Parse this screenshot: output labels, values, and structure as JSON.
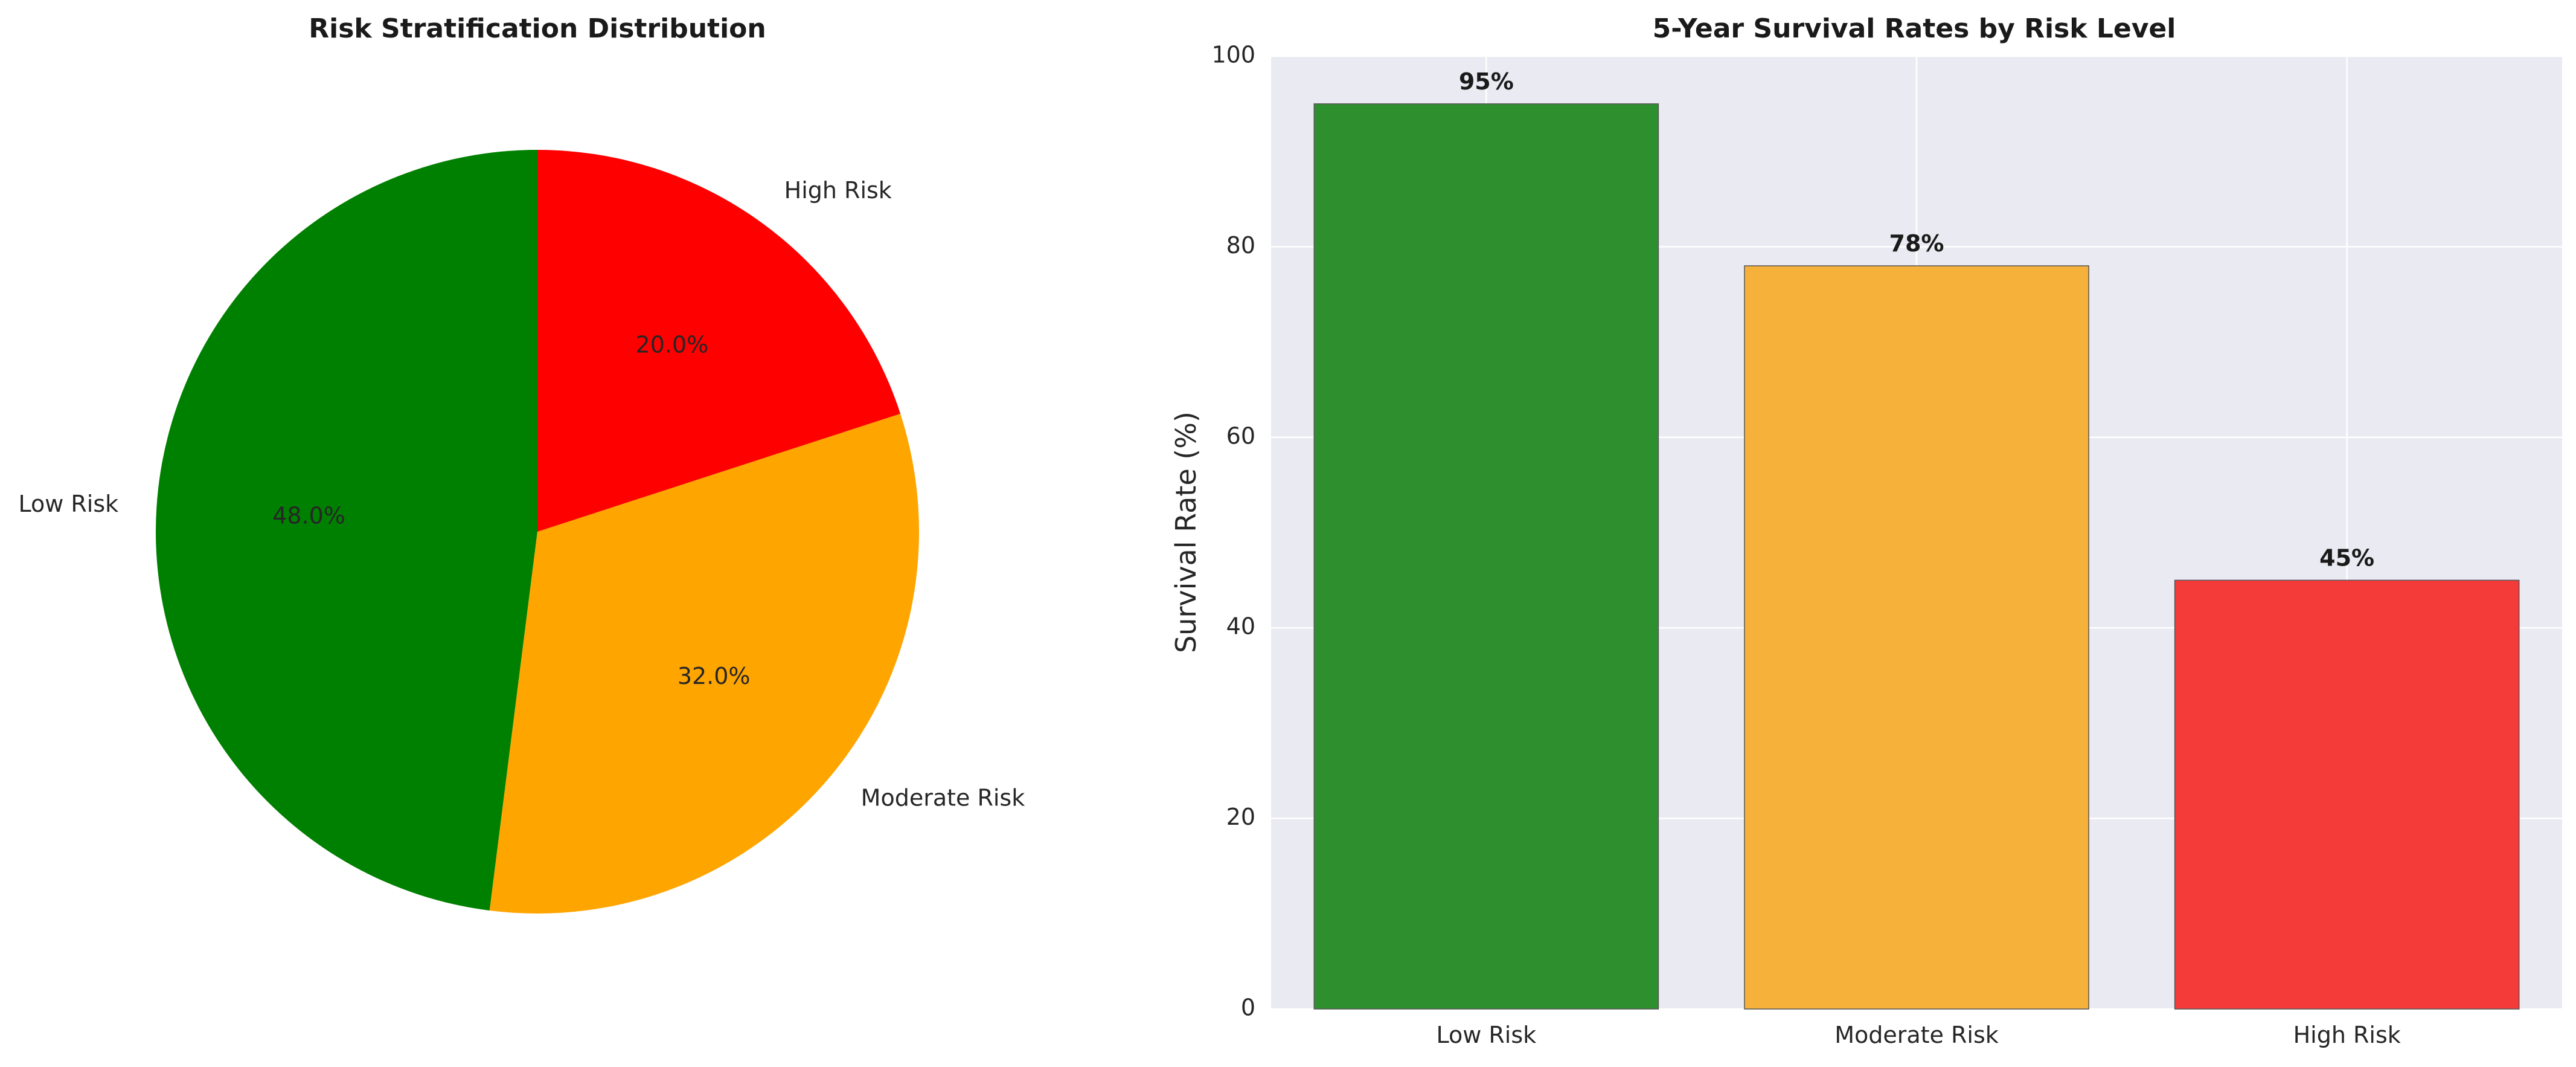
{
  "chart_data": [
    {
      "type": "pie",
      "title": "Risk Stratification Distribution",
      "categories": [
        "Low Risk",
        "Moderate Risk",
        "High Risk"
      ],
      "values": [
        48.0,
        32.0,
        20.0
      ],
      "value_labels": [
        "48.0%",
        "32.0%",
        "20.0%"
      ],
      "colors": [
        "#008000",
        "#ffa500",
        "#ff0000"
      ],
      "start_angle_deg": 90,
      "direction": "counterclockwise"
    },
    {
      "type": "bar",
      "title": "5-Year Survival Rates by Risk Level",
      "categories": [
        "Low Risk",
        "Moderate Risk",
        "High Risk"
      ],
      "values": [
        95,
        78,
        45
      ],
      "value_labels": [
        "95%",
        "78%",
        "45%"
      ],
      "colors": [
        "#2e8f2e",
        "#f5b13a",
        "#f53a3a"
      ],
      "xlabel": "",
      "ylabel": "Survival Rate (%)",
      "ylim": [
        0,
        100
      ],
      "yticks": [
        "0",
        "20",
        "40",
        "60",
        "80",
        "100"
      ],
      "grid": true,
      "background": "#eaeaf2"
    }
  ]
}
